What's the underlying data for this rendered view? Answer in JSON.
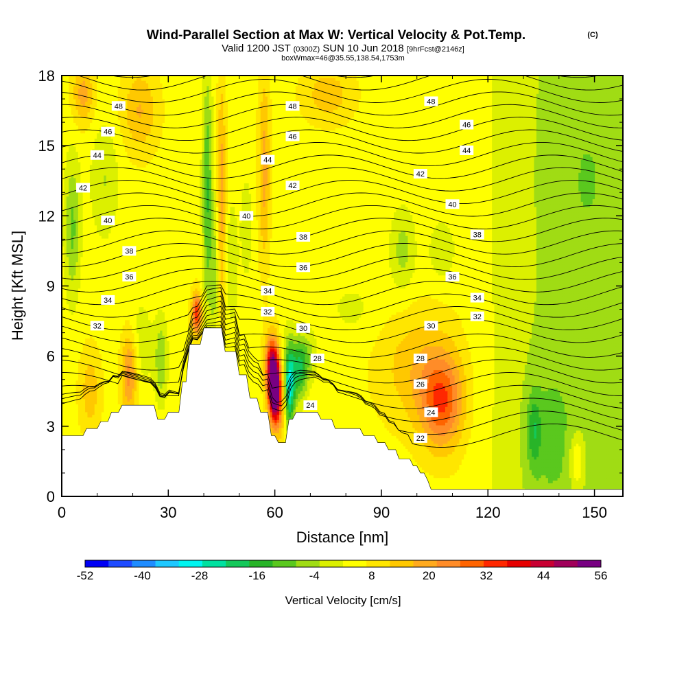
{
  "chart_data": {
    "type": "heatmap",
    "title": "Wind-Parallel Section at Max W: Vertical Velocity & Pot.Temp.",
    "title_mark": "(C)",
    "subtitle": {
      "prefix": "Valid 1200 JST",
      "utc": "(0300Z)",
      "date": "SUN 10 Jun 2018",
      "forecast": "[9hrFcst@2146z]"
    },
    "detail": "boxWmax=46@35.55,138.54,1753m",
    "xlabel": "Distance [nm]",
    "ylabel": "Height [Kft MSL]",
    "xlim": [
      0,
      158
    ],
    "ylim": [
      0,
      18
    ],
    "x_ticks": [
      0,
      30,
      60,
      90,
      120,
      150
    ],
    "y_ticks": [
      0,
      3,
      6,
      9,
      12,
      15,
      18
    ],
    "colorbar": {
      "label": "Vertical Velocity [cm/s]",
      "tick_values": [
        -52,
        -40,
        -28,
        -16,
        -4,
        8,
        20,
        32,
        44,
        56
      ],
      "colors": [
        "#0000f5",
        "#1e4bff",
        "#1e8cff",
        "#1ec8ff",
        "#00f5f0",
        "#00e1a0",
        "#14c85a",
        "#28b428",
        "#5ac81e",
        "#a0dc14",
        "#dcf000",
        "#ffff00",
        "#ffe600",
        "#ffc800",
        "#ffaa1e",
        "#ff8c28",
        "#ff6400",
        "#ff2800",
        "#e60000",
        "#c80032",
        "#a0005a",
        "#780082"
      ]
    },
    "terrain": [
      [
        0,
        2.6
      ],
      [
        6,
        2.6
      ],
      [
        7,
        2.9
      ],
      [
        10,
        2.9
      ],
      [
        11,
        3.2
      ],
      [
        13,
        3.2
      ],
      [
        14,
        3.6
      ],
      [
        16,
        3.6
      ],
      [
        17,
        3.9
      ],
      [
        26,
        3.9
      ],
      [
        27,
        3.3
      ],
      [
        29,
        3.3
      ],
      [
        30,
        3.6
      ],
      [
        33,
        3.6
      ],
      [
        34,
        4.9
      ],
      [
        35,
        4.9
      ],
      [
        36,
        6.5
      ],
      [
        39,
        6.5
      ],
      [
        40,
        7.2
      ],
      [
        45,
        7.2
      ],
      [
        46,
        6.2
      ],
      [
        49,
        6.2
      ],
      [
        50,
        5.2
      ],
      [
        52,
        5.2
      ],
      [
        53,
        4.2
      ],
      [
        55,
        4.2
      ],
      [
        56,
        3.6
      ],
      [
        58,
        3.6
      ],
      [
        59,
        2.6
      ],
      [
        60,
        2.6
      ],
      [
        61,
        2.3
      ],
      [
        63,
        2.3
      ],
      [
        64,
        3.3
      ],
      [
        65,
        3.3
      ],
      [
        66,
        3.6
      ],
      [
        72,
        3.6
      ],
      [
        73,
        3.3
      ],
      [
        76,
        3.3
      ],
      [
        77,
        2.9
      ],
      [
        84,
        2.9
      ],
      [
        85,
        2.6
      ],
      [
        88,
        2.6
      ],
      [
        89,
        2.3
      ],
      [
        91,
        2.3
      ],
      [
        92,
        2.0
      ],
      [
        94,
        2.0
      ],
      [
        95,
        1.6
      ],
      [
        98,
        1.6
      ],
      [
        99,
        1.3
      ],
      [
        100,
        1.3
      ],
      [
        101,
        1.0
      ],
      [
        102,
        1.0
      ],
      [
        103,
        0.7
      ],
      [
        104,
        0.3
      ],
      [
        105,
        0.3
      ],
      [
        158,
        0.3
      ]
    ],
    "w_features": [
      {
        "x": 3,
        "y": 11.5,
        "rx": 2.2,
        "ry": 3.0,
        "w": -14
      },
      {
        "x": 12,
        "y": 13.5,
        "rx": 4,
        "ry": 2.5,
        "w": -8
      },
      {
        "x": 41,
        "y": 13.0,
        "rx": 1.4,
        "ry": 5.0,
        "w": -18
      },
      {
        "x": 43,
        "y": 9.5,
        "rx": 1.2,
        "ry": 3.0,
        "w": -10
      },
      {
        "x": 45,
        "y": 13.0,
        "rx": 1.2,
        "ry": 5.0,
        "w": 14
      },
      {
        "x": 57,
        "y": 14.0,
        "rx": 1.6,
        "ry": 4.0,
        "w": 14
      },
      {
        "x": 48,
        "y": 10.0,
        "rx": 1.6,
        "ry": 2.5,
        "w": -8
      },
      {
        "x": 52,
        "y": 11.5,
        "rx": 1.5,
        "ry": 2.0,
        "w": -8
      },
      {
        "x": 38,
        "y": 7.8,
        "rx": 1.4,
        "ry": 0.9,
        "w": 30
      },
      {
        "x": 19,
        "y": 5.3,
        "rx": 2.2,
        "ry": 1.8,
        "w": 20
      },
      {
        "x": 8,
        "y": 4.5,
        "rx": 3.0,
        "ry": 1.8,
        "w": 10
      },
      {
        "x": 28,
        "y": 5.8,
        "rx": 1.8,
        "ry": 1.8,
        "w": -12
      },
      {
        "x": 22,
        "y": 6.5,
        "rx": 4,
        "ry": 2.0,
        "w": -6
      },
      {
        "x": 59,
        "y": 5.5,
        "rx": 1.8,
        "ry": 1.4,
        "w": 34
      },
      {
        "x": 60,
        "y": 4.5,
        "rx": 1.5,
        "ry": 1.4,
        "w": 56
      },
      {
        "x": 62,
        "y": 4.0,
        "rx": 1.5,
        "ry": 1.6,
        "w": 14
      },
      {
        "x": 64,
        "y": 4.7,
        "rx": 1.6,
        "ry": 1.8,
        "w": -34
      },
      {
        "x": 67,
        "y": 5.5,
        "rx": 2.2,
        "ry": 1.3,
        "w": -24
      },
      {
        "x": 70,
        "y": 6.0,
        "rx": 2.0,
        "ry": 1.0,
        "w": -8
      },
      {
        "x": 107,
        "y": 4.0,
        "rx": 6,
        "ry": 2.0,
        "w": 24
      },
      {
        "x": 100,
        "y": 5.5,
        "rx": 11,
        "ry": 2.5,
        "w": 10
      },
      {
        "x": 96,
        "y": 10.5,
        "rx": 3.5,
        "ry": 1.8,
        "w": -10
      },
      {
        "x": 107,
        "y": 10.5,
        "rx": 3.5,
        "ry": 1.2,
        "w": -8
      },
      {
        "x": 138,
        "y": 2.5,
        "rx": 9,
        "ry": 4.0,
        "w": -6
      },
      {
        "x": 133,
        "y": 2.8,
        "rx": 2.0,
        "ry": 1.6,
        "w": -12
      },
      {
        "x": 148,
        "y": 13.5,
        "rx": 12,
        "ry": 6.0,
        "w": -5
      },
      {
        "x": 145,
        "y": 1.5,
        "rx": 2.0,
        "ry": 1.2,
        "w": 12
      },
      {
        "x": 22,
        "y": 16.5,
        "rx": 5,
        "ry": 1.8,
        "w": 12
      },
      {
        "x": 6,
        "y": 17.2,
        "rx": 3,
        "ry": 1.3,
        "w": 14
      },
      {
        "x": 75,
        "y": 17.2,
        "rx": 7,
        "ry": 1.2,
        "w": 10
      },
      {
        "x": 82,
        "y": 8.0,
        "rx": 8,
        "ry": 1.4,
        "w": -4
      }
    ],
    "contour_labels": [
      {
        "x": 16,
        "y": 16.7,
        "value": 48
      },
      {
        "x": 65,
        "y": 16.7,
        "value": 48
      },
      {
        "x": 104,
        "y": 16.9,
        "value": 48
      },
      {
        "x": 13,
        "y": 15.6,
        "value": 46
      },
      {
        "x": 65,
        "y": 15.4,
        "value": 46
      },
      {
        "x": 114,
        "y": 15.9,
        "value": 46
      },
      {
        "x": 10,
        "y": 14.6,
        "value": 44
      },
      {
        "x": 58,
        "y": 14.4,
        "value": 44
      },
      {
        "x": 114,
        "y": 14.8,
        "value": 44
      },
      {
        "x": 6,
        "y": 13.2,
        "value": 42
      },
      {
        "x": 65,
        "y": 13.3,
        "value": 42
      },
      {
        "x": 101,
        "y": 13.8,
        "value": 42
      },
      {
        "x": 13,
        "y": 11.8,
        "value": 40
      },
      {
        "x": 52,
        "y": 12.0,
        "value": 40
      },
      {
        "x": 110,
        "y": 12.5,
        "value": 40
      },
      {
        "x": 19,
        "y": 10.5,
        "value": 38
      },
      {
        "x": 68,
        "y": 11.1,
        "value": 38
      },
      {
        "x": 117,
        "y": 11.2,
        "value": 38
      },
      {
        "x": 19,
        "y": 9.4,
        "value": 36
      },
      {
        "x": 68,
        "y": 9.8,
        "value": 36
      },
      {
        "x": 110,
        "y": 9.4,
        "value": 36
      },
      {
        "x": 13,
        "y": 8.4,
        "value": 34
      },
      {
        "x": 58,
        "y": 8.8,
        "value": 34
      },
      {
        "x": 117,
        "y": 8.5,
        "value": 34
      },
      {
        "x": 10,
        "y": 7.3,
        "value": 32
      },
      {
        "x": 58,
        "y": 7.9,
        "value": 32
      },
      {
        "x": 117,
        "y": 7.7,
        "value": 32
      },
      {
        "x": 68,
        "y": 7.2,
        "value": 30
      },
      {
        "x": 104,
        "y": 7.3,
        "value": 30
      },
      {
        "x": 72,
        "y": 5.9,
        "value": 28
      },
      {
        "x": 101,
        "y": 5.9,
        "value": 28
      },
      {
        "x": 101,
        "y": 4.8,
        "value": 26
      },
      {
        "x": 70,
        "y": 3.9,
        "value": 24
      },
      {
        "x": 104,
        "y": 3.6,
        "value": 24
      },
      {
        "x": 101,
        "y": 2.5,
        "value": 22
      }
    ]
  }
}
